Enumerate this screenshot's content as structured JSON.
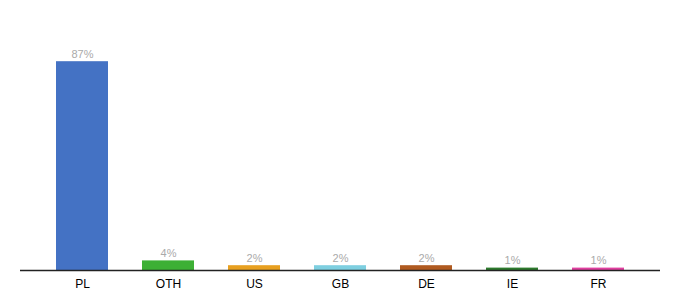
{
  "chart_data": {
    "type": "bar",
    "categories": [
      "PL",
      "OTH",
      "US",
      "GB",
      "DE",
      "IE",
      "FR"
    ],
    "values": [
      87,
      4,
      2,
      2,
      2,
      1,
      1
    ],
    "value_labels": [
      "87%",
      "4%",
      "2%",
      "2%",
      "2%",
      "1%",
      "1%"
    ],
    "data_labels": true,
    "colors": [
      "#4472c4",
      "#3db035",
      "#e8a020",
      "#7ecfe0",
      "#b05a20",
      "#2d7a2d",
      "#e040a0"
    ],
    "ylim": [
      0,
      100
    ],
    "grid": false,
    "tick_labels": "x"
  }
}
